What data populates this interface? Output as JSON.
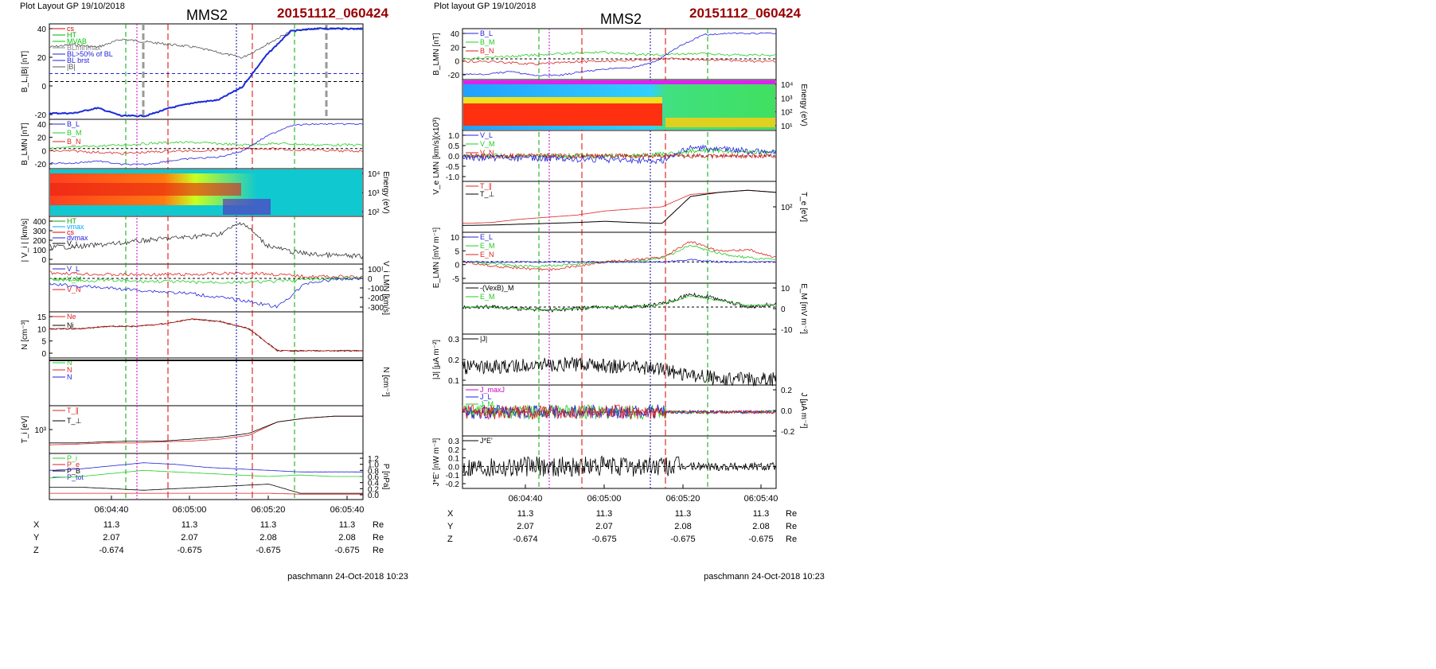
{
  "left": {
    "header": "Plot Layout GP 19/10/2018",
    "spacecraft": "MMS2",
    "event": "20151112_060424",
    "footer": "paschmann 24-Oct-2018 10:23",
    "time_ticks": [
      "06:04:40",
      "06:05:00",
      "06:05:20",
      "06:05:40"
    ],
    "position_rows": [
      {
        "label": "X",
        "values": [
          "11.3",
          "11.3",
          "11.3",
          "11.3"
        ],
        "unit": "Re"
      },
      {
        "label": "Y",
        "values": [
          "2.07",
          "2.07",
          "2.08",
          "2.08"
        ],
        "unit": "Re"
      },
      {
        "label": "Z",
        "values": [
          "-0.674",
          "-0.675",
          "-0.675",
          "-0.675"
        ],
        "unit": "Re"
      }
    ],
    "panels": [
      {
        "ylabel": "B_L,|B| [nT]",
        "ticks": [
          "40",
          "20",
          "0",
          "-20"
        ],
        "legend": [
          "cs",
          "HT",
          "MVAB",
          "BLminmax",
          "BL>50% of BL",
          "BL brst",
          "|B|"
        ]
      },
      {
        "ylabel": "B_LMN [nT]",
        "ticks": [
          "40",
          "20",
          "0",
          "-20"
        ],
        "legend": [
          "B_L",
          "B_M",
          "B_N"
        ]
      },
      {
        "ylabel": "Energy (eV)",
        "ticks": [
          "10⁴",
          "10³",
          "10²"
        ],
        "legend": []
      },
      {
        "ylabel": "| V_i | [km/s]",
        "ticks": [
          "400",
          "300",
          "200",
          "100",
          "0"
        ],
        "legend": [
          "HT",
          "vmax",
          "cs",
          "dvmax",
          "V_i"
        ]
      },
      {
        "ylabel": "V_i LMN [km/s]",
        "ticks": [
          "100",
          "0",
          "-100",
          "-200",
          "-300"
        ],
        "legend": [
          "V_L",
          "V_M",
          "V_N"
        ]
      },
      {
        "ylabel": "N [cm⁻³]",
        "ticks": [
          "15",
          "10",
          "5",
          "0"
        ],
        "legend": [
          "Ne",
          "Ni"
        ]
      },
      {
        "ylabel": "N [cm⁻³]",
        "ticks": [],
        "legend": [
          "N",
          "N",
          "N"
        ]
      },
      {
        "ylabel": "T_i [eV]",
        "ticks": [
          "10³"
        ],
        "legend": [
          "T_∥",
          "T_⊥"
        ]
      },
      {
        "ylabel": "P [nPa]",
        "ticks": [
          "1.2",
          "1.0",
          "0.8",
          "0.6",
          "0.4",
          "0.2",
          "0.0"
        ],
        "legend": [
          "P_i",
          "P_e",
          "P_B",
          "P_tot"
        ]
      }
    ]
  },
  "right": {
    "header": "Plot layout GP 19/10/2018",
    "spacecraft": "MMS2",
    "event": "20151112_060424",
    "footer": "paschmann 24-Oct-2018 10:23",
    "time_ticks": [
      "06:04:40",
      "06:05:00",
      "06:05:20",
      "06:05:40"
    ],
    "position_rows": [
      {
        "label": "X",
        "values": [
          "11.3",
          "11.3",
          "11.3",
          "11.3"
        ],
        "unit": "Re"
      },
      {
        "label": "Y",
        "values": [
          "2.07",
          "2.07",
          "2.08",
          "2.08"
        ],
        "unit": "Re"
      },
      {
        "label": "Z",
        "values": [
          "-0.674",
          "-0.675",
          "-0.675",
          "-0.675"
        ],
        "unit": "Re"
      }
    ],
    "panels": [
      {
        "ylabel": "B_LMN [nT]",
        "ticks": [
          "40",
          "20",
          "0",
          "-20"
        ],
        "legend": [
          "B_L",
          "B_M",
          "B_N"
        ]
      },
      {
        "ylabel": "Energy (eV)",
        "ticks": [
          "10⁴",
          "10³",
          "10²",
          "10¹"
        ],
        "legend": []
      },
      {
        "ylabel": "V_e LMN [km/s](x10³)",
        "ticks": [
          "1.0",
          "0.5",
          "0.0",
          "-0.5",
          "-1.0"
        ],
        "legend": [
          "V_L",
          "V_M",
          "V_N"
        ]
      },
      {
        "ylabel": "T_e [eV]",
        "ticks": [
          "10²"
        ],
        "legend": [
          "T_∥",
          "T_⊥"
        ]
      },
      {
        "ylabel": "E_LMN [mV m⁻¹]",
        "ticks": [
          "10",
          "5",
          "0",
          "-5"
        ],
        "legend": [
          "E_L",
          "E_M",
          "E_N"
        ]
      },
      {
        "ylabel": "E_M [mV m⁻²]",
        "ticks": [
          "10",
          "0",
          "-10"
        ],
        "legend": [
          "-(VexB)_M",
          "E_M"
        ]
      },
      {
        "ylabel": "|J| [μA m⁻²]",
        "ticks": [
          "0.3",
          "0.2",
          "0.1"
        ],
        "legend": [
          "|J|"
        ]
      },
      {
        "ylabel": "J [μA m⁻²]",
        "ticks": [
          "0.2",
          "0.0",
          "-0.2"
        ],
        "legend": [
          "J_maxJ",
          "J_L",
          "J_M",
          "J_N"
        ]
      },
      {
        "ylabel": "J*E' [nW m⁻³]",
        "ticks": [
          "0.3",
          "0.2",
          "0.1",
          "0.0",
          "-0.1",
          "-0.2"
        ],
        "legend": [
          "J*E'"
        ]
      }
    ]
  },
  "chart_data": [
    {
      "type": "line",
      "title": "MMS2  20151112_060424",
      "xlabel": "",
      "x_ticks": [
        "06:04:40",
        "06:05:00",
        "06:05:20",
        "06:05:40"
      ],
      "series": [
        {
          "name": "BL brst",
          "values": [
            -24,
            -24,
            -20,
            -26,
            -26,
            -20,
            -16,
            -14,
            -4,
            20,
            38,
            40,
            40,
            40
          ]
        },
        {
          "name": "|B|",
          "values": [
            26,
            28,
            26,
            32,
            30,
            28,
            26,
            22,
            18,
            28,
            38,
            40,
            40,
            40
          ]
        },
        {
          "name": "V_i",
          "values": [
            130,
            130,
            150,
            170,
            200,
            220,
            240,
            260,
            390,
            150,
            80,
            50,
            40,
            30
          ]
        },
        {
          "name": "Ne",
          "values": [
            10,
            10,
            11,
            11,
            12,
            14,
            13,
            10,
            1,
            1,
            1,
            1
          ]
        },
        {
          "name": "Ni",
          "values": [
            10,
            10,
            11,
            11,
            12,
            14,
            13,
            10,
            1,
            1,
            1,
            1
          ]
        }
      ]
    },
    {
      "type": "line",
      "title": "MMS2  20151112_060424",
      "xlabel": "",
      "x_ticks": [
        "06:04:40",
        "06:05:00",
        "06:05:20",
        "06:05:40"
      ],
      "series": [
        {
          "name": "B_L",
          "values": [
            -24,
            -24,
            -20,
            -26,
            -26,
            -20,
            -16,
            -14,
            -4,
            20,
            38,
            40,
            40,
            40
          ]
        },
        {
          "name": "B_M",
          "values": [
            0,
            2,
            4,
            6,
            8,
            10,
            10,
            8,
            6,
            8,
            8,
            6,
            6,
            6
          ]
        },
        {
          "name": "B_N",
          "values": [
            -4,
            -4,
            -6,
            -8,
            -6,
            -4,
            -4,
            -2,
            0,
            0,
            -2,
            -2,
            -4,
            -4
          ]
        }
      ]
    }
  ]
}
